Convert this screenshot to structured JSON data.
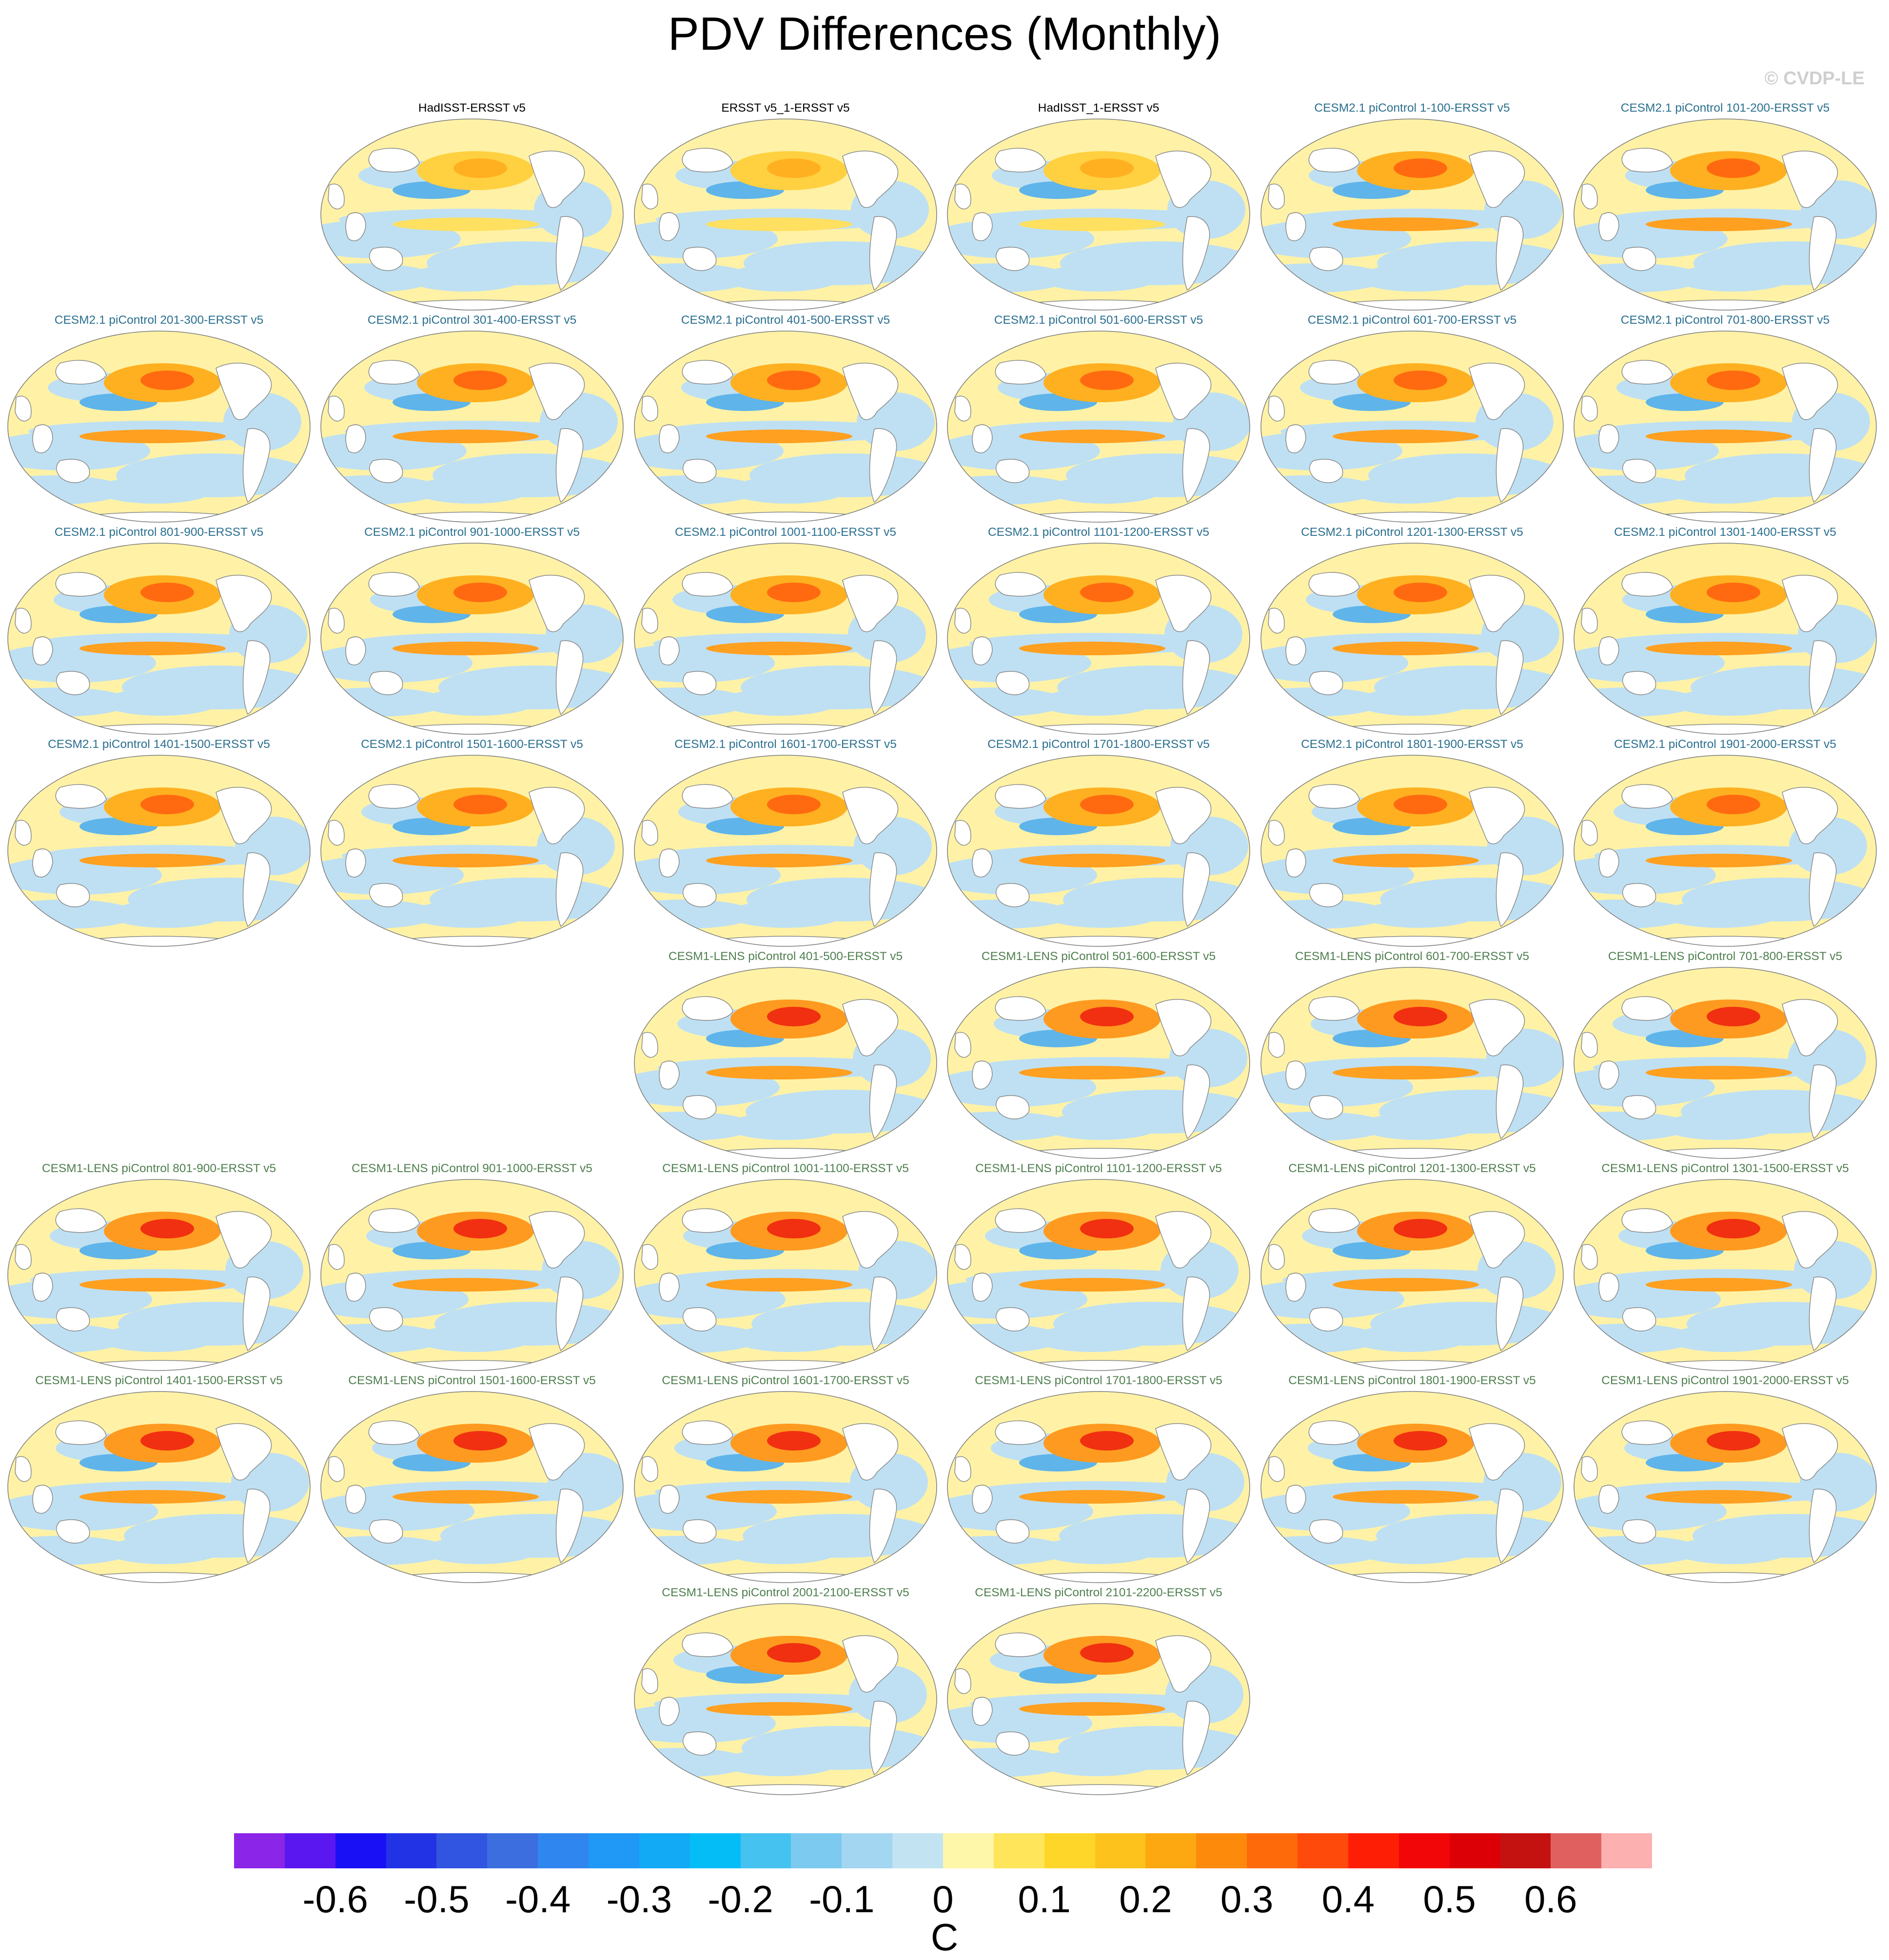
{
  "title": "PDV Differences (Monthly)",
  "watermark": "© CVDP-LE",
  "panels": [
    {
      "title": "HadISST-ERSST v5",
      "group": "obs",
      "row": 0,
      "col": 1
    },
    {
      "title": "ERSST v5_1-ERSST v5",
      "group": "obs",
      "row": 0,
      "col": 2
    },
    {
      "title": "HadISST_1-ERSST v5",
      "group": "obs",
      "row": 0,
      "col": 3
    },
    {
      "title": "CESM2.1 piControl 1-100-ERSST v5",
      "group": "cesm2",
      "row": 0,
      "col": 4
    },
    {
      "title": "CESM2.1 piControl 101-200-ERSST v5",
      "group": "cesm2",
      "row": 0,
      "col": 5
    },
    {
      "title": "CESM2.1 piControl 201-300-ERSST v5",
      "group": "cesm2",
      "row": 1,
      "col": 0
    },
    {
      "title": "CESM2.1 piControl 301-400-ERSST v5",
      "group": "cesm2",
      "row": 1,
      "col": 1
    },
    {
      "title": "CESM2.1 piControl 401-500-ERSST v5",
      "group": "cesm2",
      "row": 1,
      "col": 2
    },
    {
      "title": "CESM2.1 piControl 501-600-ERSST v5",
      "group": "cesm2",
      "row": 1,
      "col": 3
    },
    {
      "title": "CESM2.1 piControl 601-700-ERSST v5",
      "group": "cesm2",
      "row": 1,
      "col": 4
    },
    {
      "title": "CESM2.1 piControl 701-800-ERSST v5",
      "group": "cesm2",
      "row": 1,
      "col": 5
    },
    {
      "title": "CESM2.1 piControl 801-900-ERSST v5",
      "group": "cesm2",
      "row": 2,
      "col": 0
    },
    {
      "title": "CESM2.1 piControl 901-1000-ERSST v5",
      "group": "cesm2",
      "row": 2,
      "col": 1
    },
    {
      "title": "CESM2.1 piControl 1001-1100-ERSST v5",
      "group": "cesm2",
      "row": 2,
      "col": 2
    },
    {
      "title": "CESM2.1 piControl 1101-1200-ERSST v5",
      "group": "cesm2",
      "row": 2,
      "col": 3
    },
    {
      "title": "CESM2.1 piControl 1201-1300-ERSST v5",
      "group": "cesm2",
      "row": 2,
      "col": 4
    },
    {
      "title": "CESM2.1 piControl 1301-1400-ERSST v5",
      "group": "cesm2",
      "row": 2,
      "col": 5
    },
    {
      "title": "CESM2.1 piControl 1401-1500-ERSST v5",
      "group": "cesm2",
      "row": 3,
      "col": 0
    },
    {
      "title": "CESM2.1 piControl 1501-1600-ERSST v5",
      "group": "cesm2",
      "row": 3,
      "col": 1
    },
    {
      "title": "CESM2.1 piControl 1601-1700-ERSST v5",
      "group": "cesm2",
      "row": 3,
      "col": 2
    },
    {
      "title": "CESM2.1 piControl 1701-1800-ERSST v5",
      "group": "cesm2",
      "row": 3,
      "col": 3
    },
    {
      "title": "CESM2.1 piControl 1801-1900-ERSST v5",
      "group": "cesm2",
      "row": 3,
      "col": 4
    },
    {
      "title": "CESM2.1 piControl 1901-2000-ERSST v5",
      "group": "cesm2",
      "row": 3,
      "col": 5
    },
    {
      "title": "CESM1-LENS piControl 401-500-ERSST v5",
      "group": "cesm1",
      "row": 4,
      "col": 2
    },
    {
      "title": "CESM1-LENS piControl 501-600-ERSST v5",
      "group": "cesm1",
      "row": 4,
      "col": 3
    },
    {
      "title": "CESM1-LENS piControl 601-700-ERSST v5",
      "group": "cesm1",
      "row": 4,
      "col": 4
    },
    {
      "title": "CESM1-LENS piControl 701-800-ERSST v5",
      "group": "cesm1",
      "row": 4,
      "col": 5
    },
    {
      "title": "CESM1-LENS piControl 801-900-ERSST v5",
      "group": "cesm1",
      "row": 5,
      "col": 0
    },
    {
      "title": "CESM1-LENS piControl 901-1000-ERSST v5",
      "group": "cesm1",
      "row": 5,
      "col": 1
    },
    {
      "title": "CESM1-LENS piControl 1001-1100-ERSST v5",
      "group": "cesm1",
      "row": 5,
      "col": 2
    },
    {
      "title": "CESM1-LENS piControl 1101-1200-ERSST v5",
      "group": "cesm1",
      "row": 5,
      "col": 3
    },
    {
      "title": "CESM1-LENS piControl 1201-1300-ERSST v5",
      "group": "cesm1",
      "row": 5,
      "col": 4
    },
    {
      "title": "CESM1-LENS piControl 1301-1500-ERSST v5",
      "group": "cesm1",
      "row": 5,
      "col": 5
    },
    {
      "title": "CESM1-LENS piControl 1401-1500-ERSST v5",
      "group": "cesm1",
      "row": 6,
      "col": 0
    },
    {
      "title": "CESM1-LENS piControl 1501-1600-ERSST v5",
      "group": "cesm1",
      "row": 6,
      "col": 1
    },
    {
      "title": "CESM1-LENS piControl 1601-1700-ERSST v5",
      "group": "cesm1",
      "row": 6,
      "col": 2
    },
    {
      "title": "CESM1-LENS piControl 1701-1800-ERSST v5",
      "group": "cesm1",
      "row": 6,
      "col": 3
    },
    {
      "title": "CESM1-LENS piControl 1801-1900-ERSST v5",
      "group": "cesm1",
      "row": 6,
      "col": 4
    },
    {
      "title": "CESM1-LENS piControl 1901-2000-ERSST v5",
      "group": "cesm1",
      "row": 6,
      "col": 5
    },
    {
      "title": "CESM1-LENS piControl 2001-2100-ERSST v5",
      "group": "cesm1",
      "row": 7,
      "col": 2
    },
    {
      "title": "CESM1-LENS piControl 2101-2200-ERSST v5",
      "group": "cesm1",
      "row": 7,
      "col": 3
    }
  ],
  "colorbar": {
    "unit": "C",
    "colors": [
      "#8b25e8",
      "#5a17f0",
      "#1a10f5",
      "#2233e6",
      "#3155e0",
      "#3c6ee0",
      "#2f86ee",
      "#1f99f5",
      "#12aaf5",
      "#04bdf7",
      "#45c2f0",
      "#7ccaf0",
      "#a3d6f0",
      "#c2e3f2",
      "#fef6a8",
      "#fee55a",
      "#fed62a",
      "#fec21c",
      "#fea811",
      "#fe8a0c",
      "#fe6a0a",
      "#fe4a0a",
      "#fe1e06",
      "#f20608",
      "#dc0006",
      "#c41210",
      "#e06060",
      "#fcb0b0"
    ],
    "tick_labels": [
      "-0.6",
      "-0.5",
      "-0.4",
      "-0.3",
      "-0.2",
      "-0.1",
      "0",
      "0.1",
      "0.2",
      "0.3",
      "0.4",
      "0.5",
      "0.6"
    ]
  }
}
